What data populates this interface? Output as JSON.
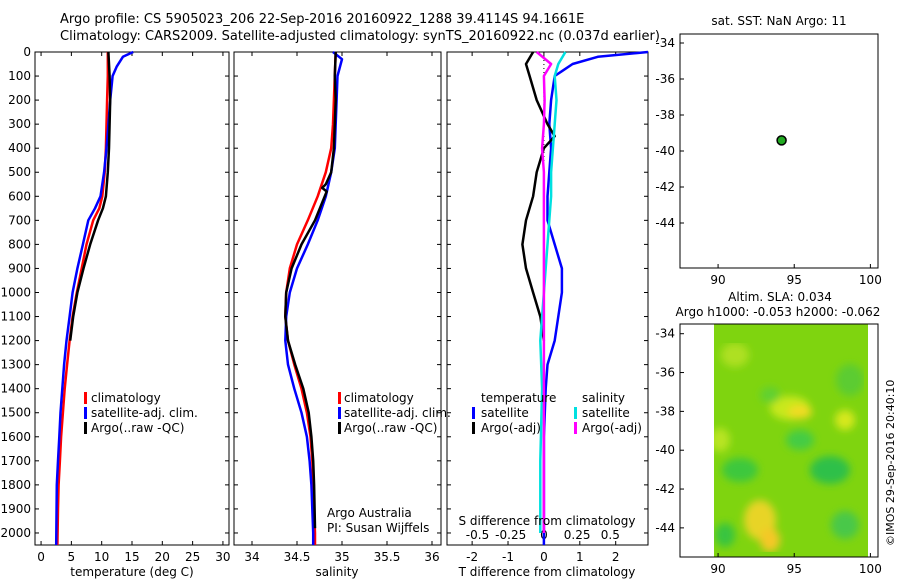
{
  "header": {
    "line1": "Argo profile: CS 5905023_206 22-Sep-2016 20160922_1288 39.4114S 94.1661E",
    "line2": "Climatology: CARS2009. Satellite-adjusted climatology: synTS_20160922.nc (0.037d earlier)"
  },
  "footer_stamp": "©IMOS 29-Sep-2016 20:40:10",
  "colors": {
    "climatology": "#ff0000",
    "satellite": "#0000ff",
    "argo": "#000000",
    "sal_satellite": "#00e0e0",
    "sal_argo": "#ff00ff"
  },
  "chart_data": [
    {
      "id": "temperature",
      "type": "line",
      "xlabel": "temperature (deg C)",
      "ylabel": "",
      "xlim": [
        -1,
        31
      ],
      "ylim": [
        2050,
        0
      ],
      "xticks": [
        "0",
        "5",
        "10",
        "15",
        "20",
        "25",
        "30"
      ],
      "yticks": [
        "0",
        "100",
        "200",
        "300",
        "400",
        "500",
        "600",
        "700",
        "800",
        "900",
        "1000",
        "1100",
        "1200",
        "1300",
        "1400",
        "1500",
        "1600",
        "1700",
        "1800",
        "1900",
        "2000"
      ],
      "legend": [
        "climatology",
        "satellite-adj. clim.",
        "Argo(..raw -QC)"
      ],
      "series": [
        {
          "name": "climatology",
          "x": [
            11.0,
            11.0,
            10.9,
            10.8,
            10.7,
            10.5,
            10.1,
            9.6,
            8.6,
            7.5,
            6.7,
            5.9,
            5.2,
            4.7,
            4.3,
            3.9,
            3.6,
            3.3,
            3.1,
            2.9,
            2.8,
            2.7
          ],
          "y": [
            0,
            100,
            200,
            300,
            400,
            500,
            600,
            650,
            700,
            800,
            900,
            1000,
            1100,
            1200,
            1300,
            1400,
            1500,
            1600,
            1700,
            1800,
            1900,
            2050
          ]
        },
        {
          "name": "satellite-adj. clim.",
          "x": [
            15.2,
            13.5,
            12.5,
            11.8,
            11.6,
            11.4,
            11.1,
            10.8,
            10.4,
            9.8,
            8.9,
            7.8,
            6.9,
            6.0,
            5.2,
            4.7,
            4.2,
            3.8,
            3.5,
            3.2,
            3.0,
            2.8,
            2.6,
            2.5
          ],
          "y": [
            0,
            20,
            60,
            100,
            150,
            200,
            300,
            400,
            500,
            600,
            650,
            700,
            800,
            900,
            1000,
            1100,
            1200,
            1300,
            1400,
            1500,
            1600,
            1700,
            1800,
            2050
          ]
        },
        {
          "name": "Argo(..raw -QC)",
          "x": [
            11.1,
            11.3,
            11.4,
            11.3,
            11.2,
            11.0,
            10.7,
            10.2,
            9.4,
            8.1,
            7.0,
            6.0,
            5.3,
            4.8
          ],
          "y": [
            0,
            100,
            200,
            300,
            400,
            500,
            600,
            650,
            700,
            800,
            900,
            1000,
            1100,
            1200
          ]
        }
      ]
    },
    {
      "id": "salinity",
      "type": "line",
      "xlabel": "salinity",
      "ylabel": "",
      "xlim": [
        33.8,
        36.1
      ],
      "ylim": [
        2050,
        0
      ],
      "xticks": [
        "34",
        "34.5",
        "35",
        "35.5",
        "36"
      ],
      "legend": [
        "climatology",
        "satellite-adj. clim.",
        "Argo(..raw -QC)"
      ],
      "annotation": [
        "Argo Australia",
        "PI: Susan Wijffels"
      ],
      "series": [
        {
          "name": "climatology",
          "x": [
            34.93,
            34.92,
            34.91,
            34.9,
            34.88,
            34.82,
            34.73,
            34.62,
            34.5,
            34.42,
            34.38,
            34.37,
            34.4,
            34.47,
            34.55,
            34.61,
            34.65,
            34.67,
            34.68,
            34.69,
            34.7,
            34.7
          ],
          "y": [
            0,
            100,
            200,
            300,
            400,
            500,
            600,
            700,
            800,
            900,
            1000,
            1100,
            1200,
            1300,
            1400,
            1500,
            1600,
            1700,
            1800,
            1900,
            2000,
            2050
          ]
        },
        {
          "name": "satellite-adj. clim.",
          "x": [
            34.9,
            35.0,
            34.95,
            34.94,
            34.93,
            34.92,
            34.88,
            34.82,
            34.73,
            34.62,
            34.5,
            34.42,
            34.38,
            34.37,
            34.4,
            34.47,
            34.55,
            34.61,
            34.64,
            34.66,
            34.67,
            34.68,
            34.68
          ],
          "y": [
            0,
            30,
            100,
            200,
            300,
            400,
            500,
            600,
            700,
            800,
            900,
            1000,
            1100,
            1200,
            1300,
            1400,
            1500,
            1600,
            1700,
            1800,
            1900,
            2000,
            2050
          ]
        },
        {
          "name": "Argo(..raw -QC)",
          "x": [
            34.93,
            34.92,
            34.93,
            34.92,
            34.91,
            34.88,
            34.82,
            34.78,
            34.83,
            34.7,
            34.55,
            34.44,
            34.38,
            34.37,
            34.4,
            34.48,
            34.57,
            34.63,
            34.66,
            34.68,
            34.69,
            34.7
          ],
          "y": [
            0,
            100,
            200,
            300,
            400,
            500,
            550,
            565,
            580,
            700,
            800,
            900,
            1000,
            1100,
            1200,
            1300,
            1400,
            1500,
            1600,
            1700,
            1800,
            1980
          ]
        }
      ]
    },
    {
      "id": "difference",
      "type": "line",
      "xlabel": "T difference from climatology",
      "x2label": "S difference from climatology",
      "xlim": [
        -2.7,
        2.9
      ],
      "ylim": [
        2050,
        0
      ],
      "xticks": [
        "-2",
        "-1",
        "0",
        "1",
        "2"
      ],
      "x2ticks": [
        "-0.5",
        "-0.25",
        "0",
        "0.25",
        "0.5"
      ],
      "legend_groups": [
        {
          "title": "temperature",
          "entries": [
            "satellite",
            "Argo(-adj)"
          ]
        },
        {
          "title": "salinity",
          "entries": [
            "satellite",
            "Argo(-adj)"
          ]
        }
      ],
      "series": [
        {
          "name": "temperature satellite",
          "x": [
            2.9,
            1.5,
            0.8,
            0.5,
            0.3,
            0.2,
            0.15,
            0.2,
            0.15,
            0.1,
            0.1,
            0.3,
            0.5,
            0.5,
            0.4,
            0.3,
            0.1,
            0.05,
            0.0,
            0.0,
            0.0
          ],
          "y": [
            0,
            20,
            50,
            80,
            100,
            200,
            300,
            400,
            500,
            600,
            700,
            800,
            900,
            1000,
            1100,
            1200,
            1300,
            1400,
            1600,
            1800,
            2050
          ]
        },
        {
          "name": "temperature Argo(-adj)",
          "x": [
            -0.3,
            -0.5,
            -0.4,
            -0.2,
            0.1,
            0.3,
            0.0,
            -0.2,
            -0.3,
            -0.5,
            -0.6,
            -0.5,
            -0.3,
            -0.1,
            0.0
          ],
          "y": [
            0,
            50,
            100,
            200,
            300,
            350,
            400,
            500,
            600,
            700,
            800,
            900,
            1000,
            1100,
            1200
          ]
        },
        {
          "name": "salinity satellite",
          "x": [
            0.6,
            0.4,
            0.3,
            0.35,
            0.3,
            0.25,
            0.2,
            0.2,
            0.15,
            0.1,
            0.05,
            0.0,
            -0.1,
            -0.05,
            -0.1,
            -0.1
          ],
          "y": [
            0,
            50,
            100,
            200,
            300,
            400,
            500,
            600,
            700,
            800,
            900,
            1000,
            1200,
            1400,
            1700,
            2000
          ]
        },
        {
          "name": "salinity Argo(-adj)",
          "x": [
            -0.2,
            0.2,
            0.0,
            0.02,
            0.0,
            -0.05,
            0.0,
            0.0,
            0.0,
            0.0,
            0.0,
            0.0,
            0.0,
            0.0
          ],
          "y": [
            0,
            50,
            100,
            200,
            300,
            400,
            500,
            550,
            600,
            700,
            800,
            1000,
            1500,
            2000
          ]
        }
      ]
    },
    {
      "id": "position",
      "type": "scatter",
      "title": "sat. SST: NaN  Argo: 11",
      "xlim": [
        87.5,
        100.5
      ],
      "ylim": [
        -46.5,
        -33.5
      ],
      "xticks": [
        "90",
        "95",
        "100"
      ],
      "yticks": [
        "-34",
        "-36",
        "-38",
        "-40",
        "-42",
        "-44"
      ],
      "points": [
        {
          "x": 94.17,
          "y": -39.41
        }
      ]
    },
    {
      "id": "altimetry",
      "type": "heatmap",
      "title": "Altim. SLA: 0.034",
      "subtitle": "Argo h1000: -0.053  h2000: -0.062",
      "xlim": [
        87.5,
        100.5
      ],
      "ylim": [
        -45.5,
        -33.5
      ],
      "xticks": [
        "90",
        "95",
        "100"
      ],
      "yticks": [
        "-34",
        "-36",
        "-38",
        "-40",
        "-42",
        "-44"
      ]
    }
  ]
}
